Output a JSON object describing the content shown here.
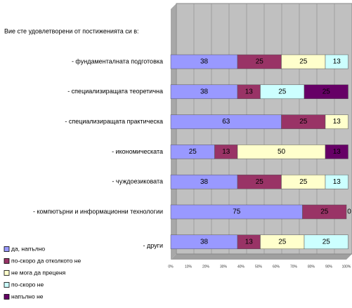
{
  "chart_data": {
    "type": "stacked_barh",
    "title": "Вие сте удовлетворени от постиженията си в:",
    "categories": [
      "- фундаменталната подготовка",
      "- специализиращата теоретична",
      "- специализиращата практическа",
      "- икономическата",
      "- чуждоезиковата",
      "- компютърни и информационни технологии",
      "- други"
    ],
    "series": [
      {
        "name": "да, напълно",
        "color": "#9999ff",
        "values": [
          38,
          38,
          63,
          25,
          38,
          75,
          38
        ]
      },
      {
        "name": "по-скоро да отколкото не",
        "color": "#993366",
        "values": [
          25,
          13,
          25,
          13,
          25,
          25,
          13
        ]
      },
      {
        "name": "не мога да преценя",
        "color": "#ffffcc",
        "values": [
          25,
          null,
          13,
          50,
          25,
          0,
          25
        ]
      },
      {
        "name": "по-скоро не",
        "color": "#ccffff",
        "values": [
          13,
          25,
          null,
          null,
          13,
          null,
          25
        ]
      },
      {
        "name": "напълно не",
        "color": "#660066",
        "values": [
          null,
          25,
          null,
          13,
          null,
          null,
          null
        ]
      }
    ],
    "xlim": [
      0,
      100
    ],
    "xticks": [
      {
        "value": 0,
        "label": "0%"
      },
      {
        "value": 10,
        "label": "10%"
      },
      {
        "value": 20,
        "label": "20%"
      },
      {
        "value": 30,
        "label": "30%"
      },
      {
        "value": 40,
        "label": "40%"
      },
      {
        "value": 50,
        "label": "50%"
      },
      {
        "value": 60,
        "label": "60%"
      },
      {
        "value": 70,
        "label": "70%"
      },
      {
        "value": 80,
        "label": "80%"
      },
      {
        "value": 90,
        "label": "90%"
      },
      {
        "value": 100,
        "label": "100%"
      }
    ],
    "grid": true
  }
}
